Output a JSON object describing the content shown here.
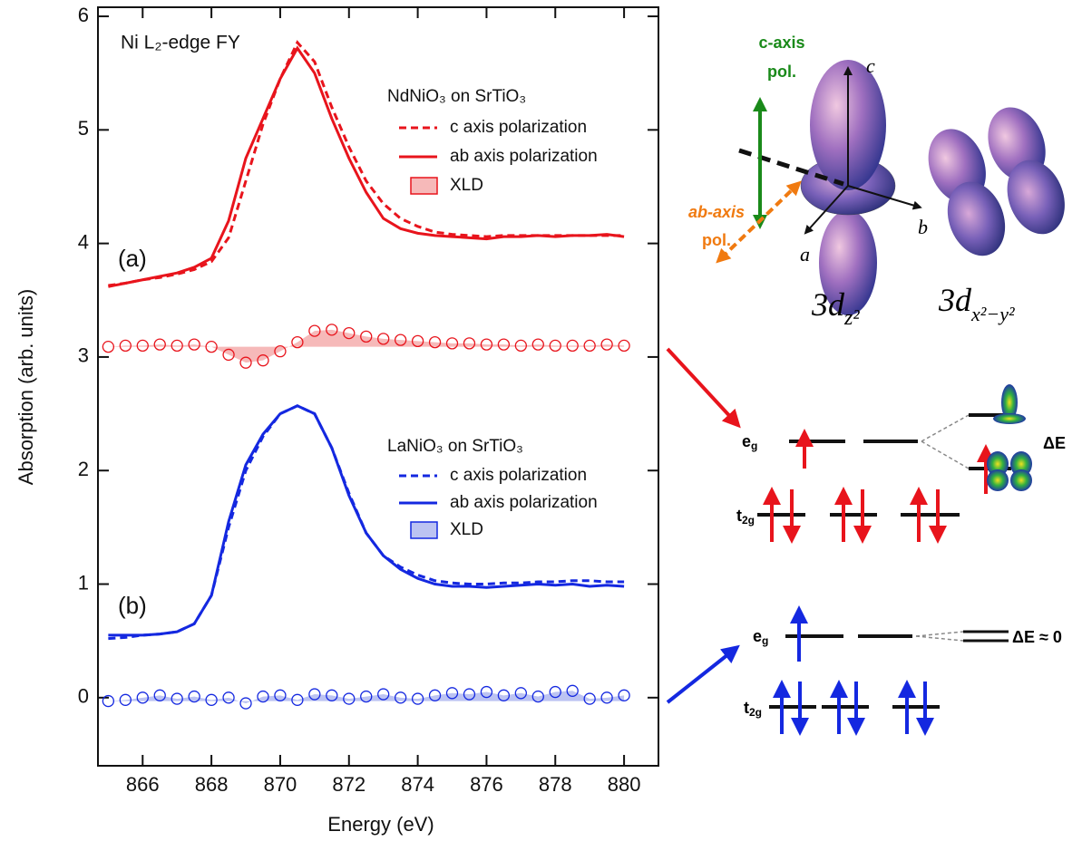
{
  "chart_data": {
    "type": "line",
    "title": "Ni L₂-edge FY",
    "xlabel": "Energy (eV)",
    "ylabel": "Absorption (arb. units)",
    "x": [
      865,
      865.5,
      866,
      866.5,
      867,
      867.5,
      868,
      868.5,
      869,
      869.5,
      870,
      870.5,
      871,
      871.5,
      872,
      872.5,
      873,
      873.5,
      874,
      874.5,
      875,
      875.5,
      876,
      876.5,
      877,
      877.5,
      878,
      878.5,
      879,
      879.5,
      880
    ],
    "xlim": [
      864.7,
      881.0
    ],
    "xticks": [
      866,
      868,
      870,
      872,
      874,
      876,
      878,
      880
    ],
    "ylim": [
      -0.6,
      6.08
    ],
    "yticks": [
      0,
      1,
      2,
      3,
      4,
      5,
      6
    ],
    "groups": [
      {
        "label": "(a)",
        "name": "NdNiO₃ on SrTiO₃",
        "series": [
          {
            "name": "c axis polarization",
            "style": "dashed",
            "color": "#e8141c",
            "values": [
              3.63,
              3.65,
              3.68,
              3.7,
              3.73,
              3.77,
              3.84,
              4.05,
              4.55,
              5.05,
              5.45,
              5.77,
              5.6,
              5.2,
              4.85,
              4.55,
              4.35,
              4.22,
              4.15,
              4.1,
              4.08,
              4.07,
              4.06,
              4.07,
              4.07,
              4.07,
              4.07,
              4.07,
              4.07,
              4.07,
              4.07
            ]
          },
          {
            "name": "ab axis polarization",
            "style": "solid",
            "color": "#e8141c",
            "values": [
              3.62,
              3.65,
              3.68,
              3.71,
              3.74,
              3.79,
              3.87,
              4.2,
              4.75,
              5.1,
              5.45,
              5.72,
              5.5,
              5.1,
              4.75,
              4.45,
              4.22,
              4.13,
              4.09,
              4.07,
              4.06,
              4.05,
              4.04,
              4.06,
              4.06,
              4.07,
              4.06,
              4.07,
              4.07,
              4.08,
              4.06
            ]
          },
          {
            "name": "XLD",
            "style": "markers",
            "color": "#e8141c",
            "fill": "#f6b9b9",
            "values": [
              3.09,
              3.1,
              3.1,
              3.11,
              3.1,
              3.11,
              3.09,
              3.02,
              2.95,
              2.97,
              3.05,
              3.13,
              3.23,
              3.24,
              3.21,
              3.18,
              3.16,
              3.15,
              3.14,
              3.13,
              3.12,
              3.12,
              3.11,
              3.11,
              3.1,
              3.11,
              3.1,
              3.1,
              3.1,
              3.11,
              3.1
            ]
          }
        ]
      },
      {
        "label": "(b)",
        "name": "LaNiO₃ on SrTiO₃",
        "series": [
          {
            "name": "c axis polarization",
            "style": "dashed",
            "color": "#1428e0",
            "values": [
              0.52,
              0.53,
              0.55,
              0.56,
              0.58,
              0.65,
              0.9,
              1.5,
              2.0,
              2.3,
              2.5,
              2.57,
              2.5,
              2.2,
              1.8,
              1.45,
              1.25,
              1.15,
              1.08,
              1.03,
              1.01,
              1.0,
              1.0,
              1.01,
              1.01,
              1.02,
              1.02,
              1.03,
              1.03,
              1.02,
              1.02
            ]
          },
          {
            "name": "ab axis polarization",
            "style": "solid",
            "color": "#1428e0",
            "values": [
              0.55,
              0.55,
              0.55,
              0.56,
              0.58,
              0.65,
              0.9,
              1.55,
              2.05,
              2.32,
              2.5,
              2.57,
              2.5,
              2.2,
              1.78,
              1.45,
              1.25,
              1.13,
              1.05,
              1.0,
              0.98,
              0.98,
              0.97,
              0.98,
              0.99,
              1.0,
              0.99,
              1.0,
              0.98,
              0.99,
              0.98
            ]
          },
          {
            "name": "XLD",
            "style": "markers",
            "color": "#1428e0",
            "fill": "#bcc3f2",
            "values": [
              -0.03,
              -0.02,
              0.0,
              0.02,
              -0.01,
              0.01,
              -0.02,
              0.0,
              -0.05,
              0.01,
              0.02,
              -0.02,
              0.03,
              0.02,
              -0.01,
              0.01,
              0.03,
              0.0,
              -0.01,
              0.02,
              0.04,
              0.03,
              0.05,
              0.02,
              0.04,
              0.01,
              0.05,
              0.06,
              -0.01,
              0.0,
              0.02
            ]
          }
        ]
      }
    ]
  },
  "diagram": {
    "c_polarization": [
      "c-axis",
      "pol."
    ],
    "ab_polarization": [
      "ab-axis",
      "pol."
    ],
    "axes": [
      "c",
      "a",
      "b"
    ],
    "orbitals": [
      {
        "main": "3d",
        "sub": "z²"
      },
      {
        "main": "3d",
        "sub": "x²−y²"
      }
    ],
    "levels": [
      {
        "eg": {
          "main": "e",
          "sub": "g"
        },
        "t2g": {
          "main": "t",
          "sub": "2g"
        },
        "splitting": "ΔE"
      },
      {
        "eg": {
          "main": "e",
          "sub": "g"
        },
        "t2g": {
          "main": "t",
          "sub": "2g"
        },
        "splitting": "ΔE ≈ 0"
      }
    ]
  }
}
